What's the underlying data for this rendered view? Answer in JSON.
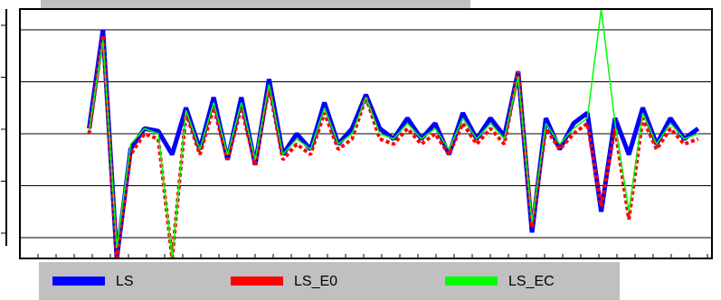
{
  "chart_data": {
    "type": "line",
    "x": [
      10,
      12,
      14,
      16,
      18,
      20,
      22,
      24,
      26,
      28,
      30,
      32,
      34,
      36,
      38,
      40,
      42,
      44,
      46,
      48,
      50,
      52,
      54,
      56,
      58,
      60,
      62,
      64,
      66,
      68,
      70,
      72,
      74,
      76,
      78,
      80,
      82,
      84,
      86,
      88,
      90,
      92,
      94,
      96,
      98
    ],
    "series": [
      {
        "name": "LS",
        "color": "#0000ff",
        "values": [
          0.1,
          2.0,
          -2.4,
          -0.3,
          0.1,
          0.05,
          -0.4,
          0.5,
          -0.3,
          0.7,
          -0.5,
          0.7,
          -0.6,
          1.05,
          -0.4,
          0.0,
          -0.3,
          0.6,
          -0.2,
          0.1,
          0.75,
          0.1,
          -0.1,
          0.3,
          -0.1,
          0.2,
          -0.4,
          0.4,
          -0.1,
          0.3,
          -0.05,
          1.2,
          -1.9,
          0.3,
          -0.3,
          0.2,
          0.4,
          -1.5,
          0.3,
          -0.4,
          0.5,
          -0.2,
          0.3,
          -0.1,
          0.1
        ]
      },
      {
        "name": "LS_E0",
        "color": "#ff0000",
        "values": [
          0.0,
          1.9,
          -2.4,
          -0.4,
          0.0,
          -0.1,
          -2.4,
          0.4,
          -0.4,
          0.5,
          -0.5,
          0.5,
          -0.6,
          0.9,
          -0.5,
          -0.2,
          -0.4,
          0.4,
          -0.3,
          -0.1,
          0.7,
          -0.1,
          -0.2,
          0.1,
          -0.2,
          0.0,
          -0.4,
          0.2,
          -0.2,
          0.1,
          -0.2,
          1.2,
          -1.8,
          0.1,
          -0.3,
          0.0,
          0.2,
          -1.4,
          0.1,
          -1.65,
          0.3,
          -0.3,
          0.1,
          -0.2,
          -0.1
        ]
      },
      {
        "name": "LS_EC",
        "color": "#00ff00",
        "values": [
          0.05,
          1.8,
          -2.2,
          -0.2,
          0.1,
          0.0,
          -2.4,
          0.45,
          -0.3,
          0.6,
          -0.4,
          0.6,
          -0.5,
          0.95,
          -0.4,
          -0.1,
          -0.3,
          0.5,
          -0.2,
          0.0,
          0.7,
          0.0,
          -0.1,
          0.2,
          -0.1,
          0.1,
          -0.3,
          0.3,
          -0.1,
          0.2,
          -0.1,
          1.1,
          -1.7,
          0.2,
          -0.2,
          0.1,
          0.3,
          2.4,
          0.2,
          -1.5,
          0.4,
          -0.2,
          0.2,
          -0.1,
          0.0
        ]
      }
    ],
    "xlim": [
      0,
      100
    ],
    "ylim": [
      -2.4,
      2.4
    ],
    "yticks": [
      -2,
      -1,
      0,
      1,
      2
    ],
    "grid": true,
    "legend": "bottom"
  }
}
